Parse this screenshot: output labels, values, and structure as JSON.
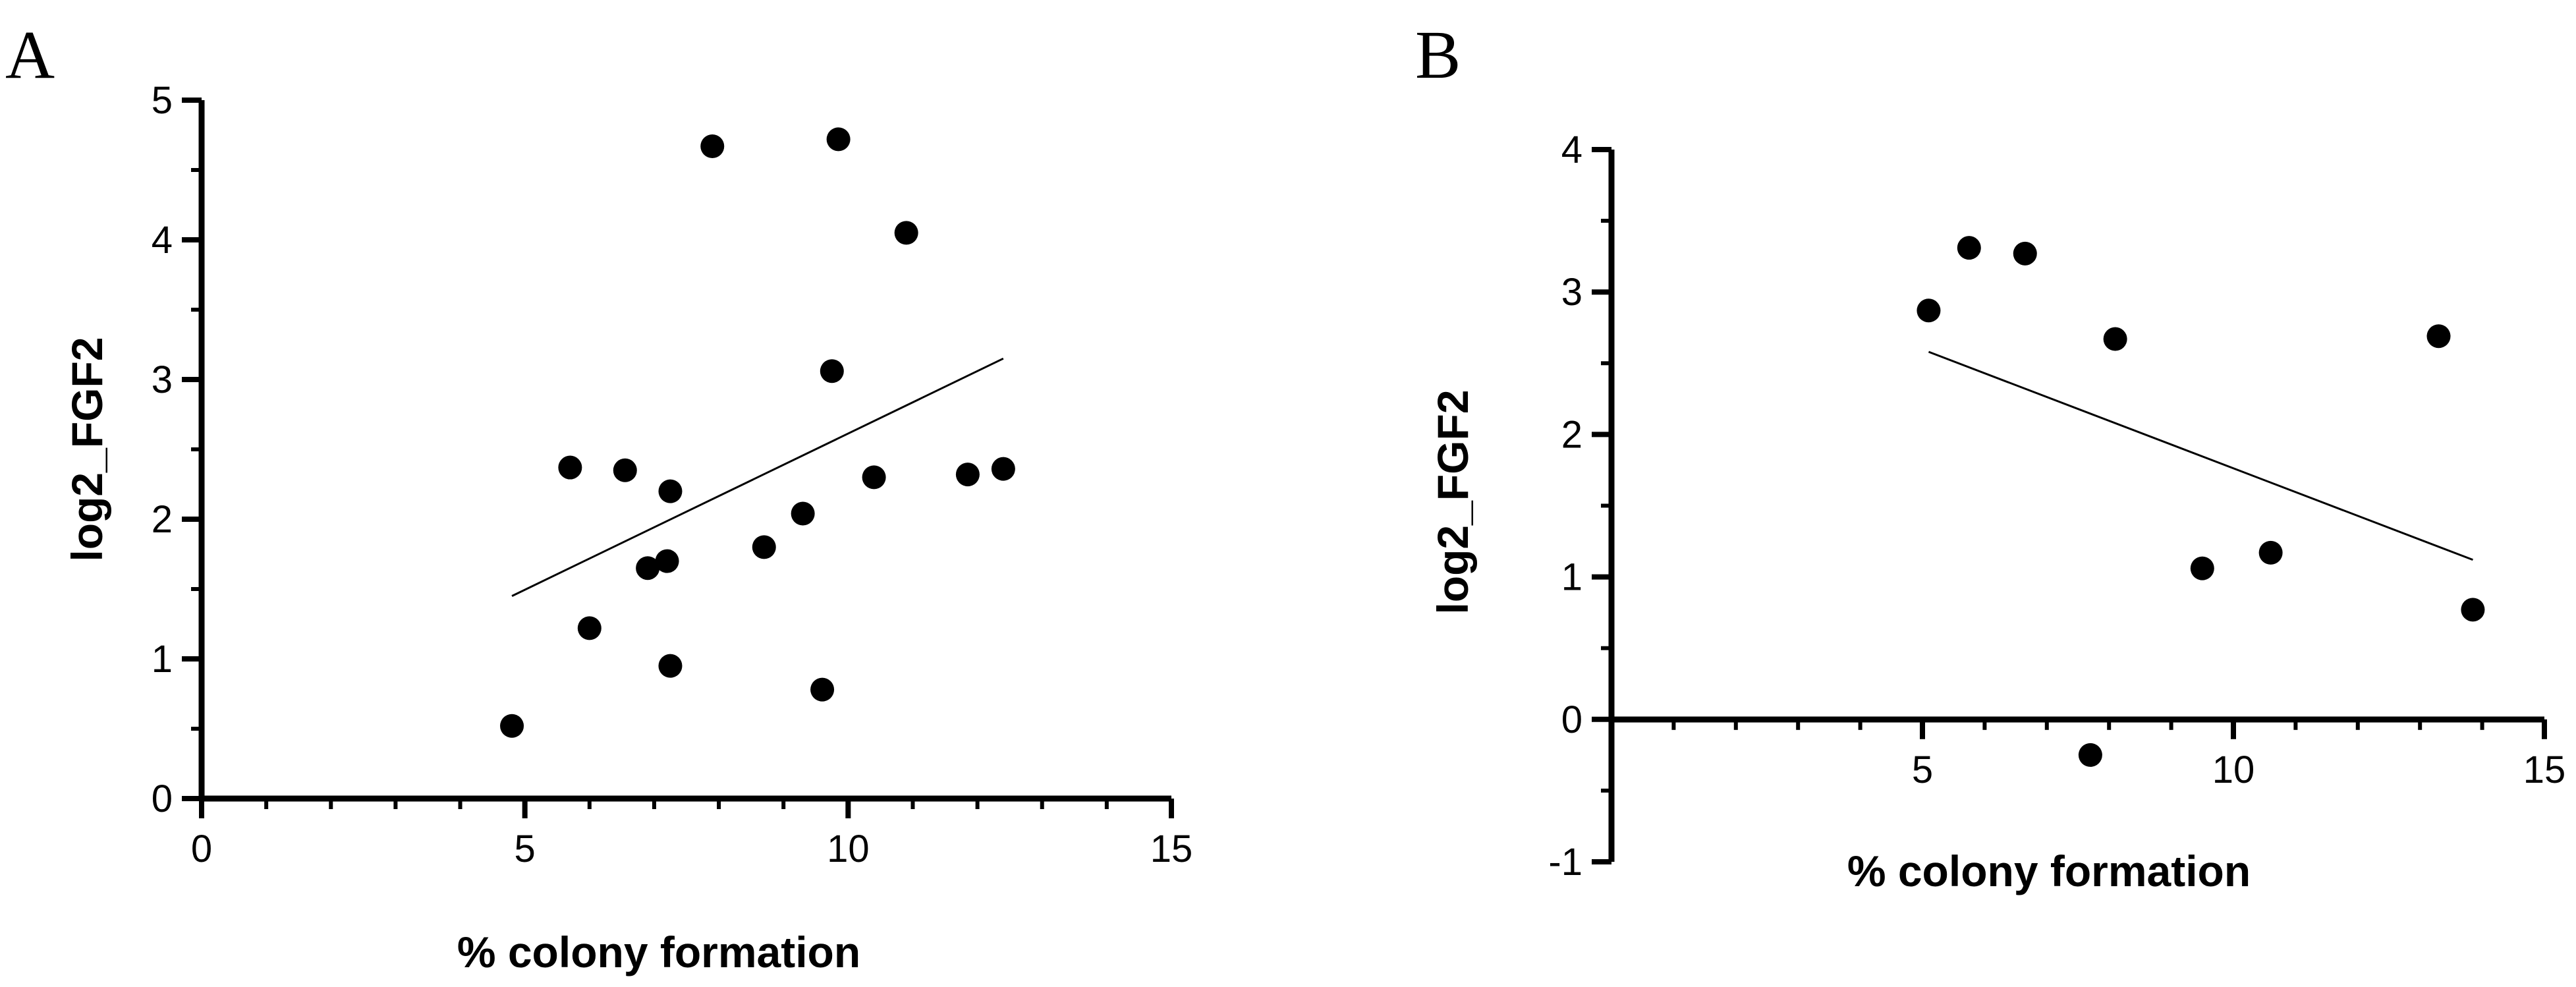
{
  "chart_data": [
    {
      "type": "scatter",
      "panel_label": "A",
      "xlabel": "% colony formation",
      "ylabel": "log2_FGF2",
      "xlim": [
        0,
        15
      ],
      "ylim": [
        0,
        5
      ],
      "xticks": [
        0,
        5,
        10,
        15
      ],
      "yticks": [
        0,
        1,
        2,
        3,
        4,
        5
      ],
      "x_minor_step": 1,
      "y_minor_step": 0.5,
      "grid": false,
      "points": [
        {
          "x": 4.8,
          "y": 0.52
        },
        {
          "x": 5.7,
          "y": 2.37
        },
        {
          "x": 6.0,
          "y": 1.22
        },
        {
          "x": 6.55,
          "y": 2.35
        },
        {
          "x": 6.9,
          "y": 1.65
        },
        {
          "x": 7.2,
          "y": 1.7
        },
        {
          "x": 7.25,
          "y": 2.2
        },
        {
          "x": 7.25,
          "y": 0.95
        },
        {
          "x": 7.9,
          "y": 4.67
        },
        {
          "x": 8.7,
          "y": 1.8
        },
        {
          "x": 9.3,
          "y": 2.04
        },
        {
          "x": 9.6,
          "y": 0.78
        },
        {
          "x": 9.75,
          "y": 3.06
        },
        {
          "x": 9.85,
          "y": 4.72
        },
        {
          "x": 10.4,
          "y": 2.3
        },
        {
          "x": 10.9,
          "y": 4.05
        },
        {
          "x": 11.85,
          "y": 2.32
        },
        {
          "x": 12.4,
          "y": 2.36
        }
      ],
      "fit_line": {
        "x": [
          4.8,
          12.4
        ],
        "y": [
          1.45,
          3.15
        ]
      }
    },
    {
      "type": "scatter",
      "panel_label": "B",
      "xlabel": "% colony formation",
      "ylabel": "log2_FGF2",
      "xlim": [
        0,
        15
      ],
      "ylim": [
        -1,
        4
      ],
      "xticks": [
        5,
        10,
        15
      ],
      "yticks": [
        -1,
        0,
        1,
        2,
        3,
        4
      ],
      "x_minor_step": 1,
      "y_minor_step": 0.5,
      "grid": false,
      "points": [
        {
          "x": 5.1,
          "y": 2.87
        },
        {
          "x": 5.75,
          "y": 3.31
        },
        {
          "x": 6.65,
          "y": 3.27
        },
        {
          "x": 7.7,
          "y": -0.25
        },
        {
          "x": 8.1,
          "y": 2.67
        },
        {
          "x": 9.5,
          "y": 1.06
        },
        {
          "x": 10.6,
          "y": 1.17
        },
        {
          "x": 13.3,
          "y": 2.69
        },
        {
          "x": 13.85,
          "y": 0.77
        }
      ],
      "fit_line": {
        "x": [
          5.1,
          13.85
        ],
        "y": [
          2.58,
          1.12
        ]
      }
    }
  ]
}
